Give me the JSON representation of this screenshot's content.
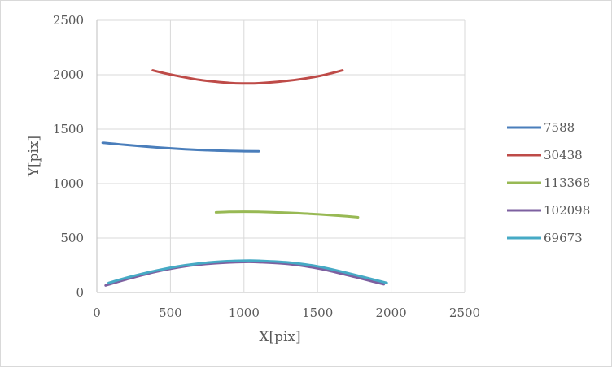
{
  "chart_data": {
    "type": "line",
    "title": "",
    "xlabel": "X[pix]",
    "ylabel": "Y[pix]",
    "xlim": [
      0,
      2500
    ],
    "ylim": [
      0,
      2500
    ],
    "xticks": [
      0,
      500,
      1000,
      1500,
      2000,
      2500
    ],
    "yticks": [
      0,
      500,
      1000,
      1500,
      2000,
      2500
    ],
    "grid": true,
    "legend_position": "right",
    "series": [
      {
        "name": "7588",
        "color": "#4a7ebb",
        "x": [
          40,
          200,
          400,
          600,
          800,
          1000,
          1100
        ],
        "y": [
          1375,
          1355,
          1333,
          1316,
          1304,
          1298,
          1297
        ]
      },
      {
        "name": "30438",
        "color": "#be4b48",
        "x": [
          380,
          500,
          700,
          900,
          1000,
          1100,
          1300,
          1500,
          1670
        ],
        "y": [
          2040,
          2002,
          1952,
          1925,
          1920,
          1922,
          1945,
          1985,
          2040
        ]
      },
      {
        "name": "113368",
        "color": "#98b954",
        "x": [
          810,
          900,
          1000,
          1100,
          1300,
          1500,
          1700,
          1775
        ],
        "y": [
          736,
          740,
          742,
          740,
          732,
          718,
          700,
          690
        ]
      },
      {
        "name": "102098",
        "color": "#7d60a0",
        "x": [
          60,
          200,
          400,
          600,
          800,
          1000,
          1100,
          1300,
          1500,
          1700,
          1950
        ],
        "y": [
          65,
          120,
          190,
          240,
          268,
          280,
          278,
          262,
          222,
          160,
          75
        ]
      },
      {
        "name": "69673",
        "color": "#46aac5",
        "x": [
          80,
          200,
          400,
          600,
          800,
          1000,
          1100,
          1300,
          1500,
          1700,
          1970
        ],
        "y": [
          88,
          135,
          200,
          250,
          280,
          292,
          291,
          276,
          240,
          180,
          88
        ]
      }
    ]
  }
}
